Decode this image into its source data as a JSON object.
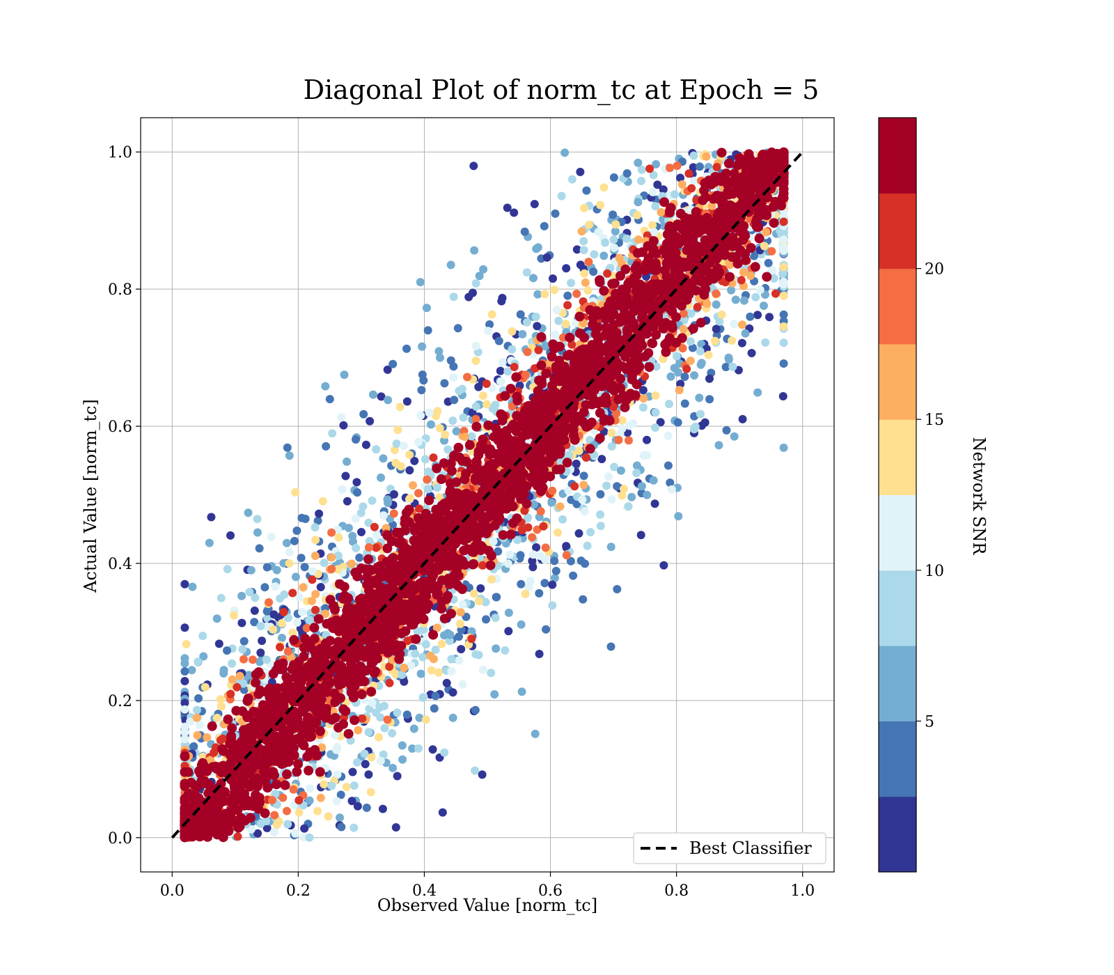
{
  "chart_data": {
    "type": "scatter",
    "title": "Diagonal Plot of norm_tc at Epoch = 5",
    "xlabel": "Observed Value [norm_tc]",
    "ylabel": "Actual Value [norm_tc]",
    "xlim": [
      -0.05,
      1.05
    ],
    "ylim": [
      -0.05,
      1.05
    ],
    "xticks": [
      "0.0",
      "0.2",
      "0.4",
      "0.6",
      "0.8",
      "1.0"
    ],
    "yticks": [
      "0.0",
      "0.2",
      "0.4",
      "0.6",
      "0.8",
      "1.0"
    ],
    "xtick_values": [
      0.0,
      0.2,
      0.4,
      0.6,
      0.8,
      1.0
    ],
    "ytick_values": [
      0.0,
      0.2,
      0.4,
      0.6,
      0.8,
      1.0
    ],
    "grid": true,
    "legend": {
      "placement": "lower-right",
      "entries": [
        "Best Classifier"
      ]
    },
    "reference_line": {
      "name": "Best Classifier",
      "x": [
        0,
        1
      ],
      "y": [
        0,
        1
      ],
      "style": "dashed",
      "color": "#000000"
    },
    "colorbar": {
      "label": "Network SNR",
      "range": [
        0,
        25
      ],
      "ticks": [
        "5",
        "10",
        "15",
        "20"
      ],
      "tick_values": [
        5,
        10,
        15,
        20
      ],
      "bands": [
        {
          "from": 0.0,
          "to": 2.5,
          "color": "#313695"
        },
        {
          "from": 2.5,
          "to": 5.0,
          "color": "#4575b4"
        },
        {
          "from": 5.0,
          "to": 7.5,
          "color": "#74add1"
        },
        {
          "from": 7.5,
          "to": 10.0,
          "color": "#abd9e9"
        },
        {
          "from": 10.0,
          "to": 12.5,
          "color": "#e0f3f8"
        },
        {
          "from": 12.5,
          "to": 15.0,
          "color": "#fee090"
        },
        {
          "from": 15.0,
          "to": 17.5,
          "color": "#fdae61"
        },
        {
          "from": 17.5,
          "to": 20.0,
          "color": "#f46d43"
        },
        {
          "from": 20.0,
          "to": 22.5,
          "color": "#d73027"
        },
        {
          "from": 22.5,
          "to": 25.0,
          "color": "#a50026"
        }
      ]
    },
    "scatter_description_points": {
      "high_snr_band": {
        "x_spread_per_y": 0.13,
        "snr": 24
      },
      "mid_band_snr": [
        20,
        17,
        14,
        12,
        9
      ],
      "low_snr_range": [
        0.5,
        8
      ]
    }
  }
}
